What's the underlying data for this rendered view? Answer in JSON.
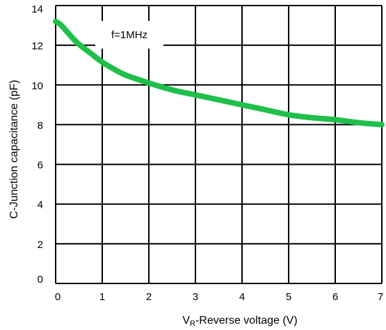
{
  "chart_data": {
    "type": "line",
    "title": "",
    "xlabel_main": "V",
    "xlabel_sub": "R",
    "xlabel_rest": "-Reverse voltage (V)",
    "ylabel": "C-Junction capacitance (pF)",
    "xlim": [
      0,
      7
    ],
    "ylim": [
      0,
      14
    ],
    "xticks": [
      "0",
      "1",
      "2",
      "3",
      "4",
      "5",
      "6",
      "7"
    ],
    "yticks": [
      "0",
      "2",
      "4",
      "6",
      "8",
      "10",
      "12",
      "14"
    ],
    "grid": true,
    "annotation": "f=1MHz",
    "series": [
      {
        "color": "#1fbf4a",
        "x": [
          0,
          0.1,
          0.2,
          0.35,
          0.5,
          0.75,
          1.0,
          1.25,
          1.5,
          2.0,
          2.5,
          3.0,
          3.5,
          4.0,
          4.5,
          5.0,
          5.5,
          6.0,
          6.5,
          7.0
        ],
        "y": [
          13.2,
          13.05,
          12.8,
          12.4,
          12.05,
          11.6,
          11.15,
          10.8,
          10.5,
          10.1,
          9.75,
          9.5,
          9.25,
          9.0,
          8.75,
          8.5,
          8.35,
          8.25,
          8.1,
          8.0
        ]
      }
    ]
  }
}
